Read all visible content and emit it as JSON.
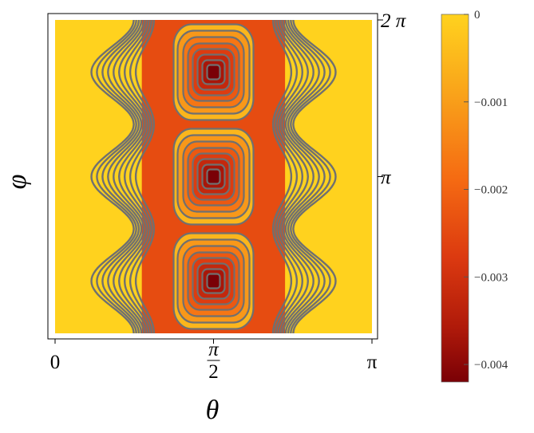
{
  "chart_data": {
    "type": "heatmap",
    "subtype": "density-contour",
    "xlabel": "θ",
    "ylabel": "φ",
    "xlim": [
      0,
      3.14159
    ],
    "ylim": [
      0,
      6.28319
    ],
    "x_ticks": [
      {
        "value": 0,
        "label": "0"
      },
      {
        "value": 1.5708,
        "num": "π",
        "den": "2"
      },
      {
        "value": 3.14159,
        "label": "π"
      }
    ],
    "y_ticks": [
      {
        "value": 3.14159,
        "label": "π"
      },
      {
        "value": 6.28319,
        "label": "2 π"
      }
    ],
    "z_range": [
      -0.0042,
      0
    ],
    "colorbar_ticks": [
      {
        "value": 0,
        "label": "0"
      },
      {
        "value": -0.001,
        "label": "−0.001"
      },
      {
        "value": -0.002,
        "label": "−0.002"
      },
      {
        "value": -0.003,
        "label": "−0.003"
      },
      {
        "value": -0.004,
        "label": "−0.004"
      }
    ],
    "minima": [
      {
        "theta": 1.5708,
        "phi": 1.0472,
        "value": -0.0042
      },
      {
        "theta": 1.5708,
        "phi": 3.14159,
        "value": -0.0042
      },
      {
        "theta": 1.5708,
        "phi": 5.23599,
        "value": -0.0042
      }
    ],
    "colormap": [
      "#FFD21E",
      "#F9A21A",
      "#F56A12",
      "#DC3A10",
      "#B01A0A",
      "#7A0006"
    ],
    "contour_color": "#707070",
    "frame_color": "#000000"
  }
}
